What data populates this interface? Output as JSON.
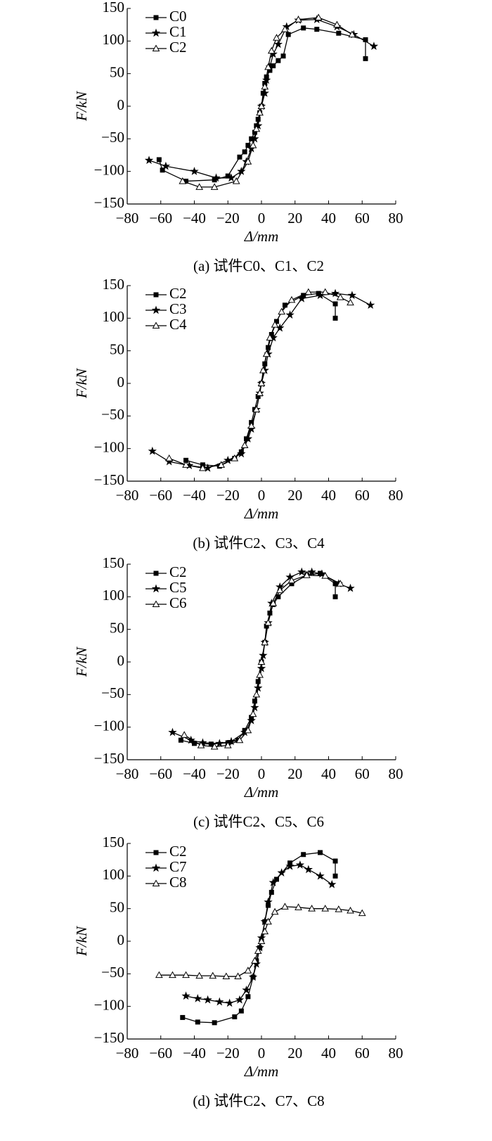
{
  "chart_data": [
    {
      "type": "line",
      "x_label": "Δ/mm",
      "y_label": "F/kN",
      "caption": "(a) 试件C0、C1、C2",
      "legend": "upper left",
      "xlim": [
        -80,
        80
      ],
      "ylim": [
        -150,
        150
      ],
      "xticks": [
        {
          "value": -80,
          "label": "−80"
        },
        {
          "value": -60,
          "label": "−60"
        },
        {
          "value": -40,
          "label": "−40"
        },
        {
          "value": -20,
          "label": "−20"
        },
        0,
        20,
        40,
        60,
        80
      ],
      "yticks": [
        {
          "value": -150,
          "label": "−150"
        },
        {
          "value": -100,
          "label": "−100"
        },
        {
          "value": -50,
          "label": "−50"
        },
        0,
        50,
        100,
        150
      ],
      "series": [
        {
          "name": "C0",
          "color": "#000000",
          "marker": "square",
          "x": [
            -61,
            -59,
            -45,
            -28,
            -20,
            -13,
            -10,
            -8,
            -6,
            -4,
            -3,
            -2,
            -1,
            0,
            1,
            2,
            3,
            5,
            7,
            10,
            13,
            16,
            25,
            33,
            46,
            62,
            62
          ],
          "values": [
            -82,
            -98,
            -115,
            -113,
            -107,
            -78,
            -70,
            -60,
            -50,
            -40,
            -30,
            -20,
            -10,
            0,
            20,
            35,
            45,
            55,
            62,
            70,
            77,
            110,
            120,
            118,
            112,
            102,
            73
          ]
        },
        {
          "name": "C1",
          "color": "#000000",
          "marker": "star",
          "x": [
            -67,
            -57,
            -40,
            -27,
            -18,
            -12,
            -9,
            -6,
            -4,
            -2,
            0,
            2,
            3,
            5,
            7,
            10,
            15,
            22,
            33,
            45,
            55,
            67
          ],
          "values": [
            -83,
            -92,
            -100,
            -110,
            -110,
            -100,
            -85,
            -65,
            -50,
            -30,
            0,
            20,
            40,
            60,
            80,
            95,
            122,
            132,
            133,
            122,
            110,
            92
          ]
        },
        {
          "name": "C2",
          "color": "#000000",
          "marker": "triangle",
          "x": [
            -47,
            -37,
            -28,
            -15,
            -8,
            -5,
            -3,
            -1,
            0,
            2,
            4,
            6,
            9,
            14,
            22,
            34,
            45,
            54
          ],
          "values": [
            -115,
            -124,
            -124,
            -115,
            -85,
            -60,
            -35,
            -10,
            0,
            30,
            60,
            85,
            105,
            118,
            133,
            136,
            125,
            110
          ]
        }
      ]
    },
    {
      "type": "line",
      "x_label": "Δ/mm",
      "y_label": "F/kN",
      "caption": "(b) 试件C2、C3、C4",
      "legend": "upper left",
      "xlim": [
        -80,
        80
      ],
      "ylim": [
        -150,
        150
      ],
      "xticks": [
        {
          "value": -80,
          "label": "−80"
        },
        {
          "value": -60,
          "label": "−60"
        },
        {
          "value": -40,
          "label": "−40"
        },
        {
          "value": -20,
          "label": "−20"
        },
        0,
        20,
        40,
        60,
        80
      ],
      "yticks": [
        {
          "value": -150,
          "label": "−150"
        },
        {
          "value": -100,
          "label": "−100"
        },
        {
          "value": -50,
          "label": "−50"
        },
        0,
        50,
        100,
        150
      ],
      "series": [
        {
          "name": "C2",
          "color": "#000000",
          "marker": "square",
          "x": [
            -45,
            -35,
            -25,
            -16,
            -12,
            -9,
            -6,
            -4,
            -2,
            0,
            2,
            4,
            6,
            9,
            14,
            25,
            34,
            44,
            44
          ],
          "values": [
            -118,
            -125,
            -127,
            -115,
            -105,
            -85,
            -60,
            -40,
            -20,
            0,
            30,
            55,
            75,
            95,
            120,
            135,
            138,
            122,
            100
          ]
        },
        {
          "name": "C3",
          "color": "#000000",
          "marker": "star",
          "x": [
            -65,
            -55,
            -43,
            -32,
            -20,
            -12,
            -8,
            -6,
            -3,
            -1,
            0,
            2,
            4,
            7,
            11,
            17,
            24,
            35,
            44,
            54,
            65
          ],
          "values": [
            -104,
            -120,
            -126,
            -130,
            -118,
            -108,
            -85,
            -70,
            -40,
            -15,
            0,
            20,
            45,
            70,
            85,
            105,
            130,
            135,
            138,
            135,
            120
          ]
        },
        {
          "name": "C4",
          "color": "#000000",
          "marker": "triangle",
          "x": [
            -55,
            -45,
            -35,
            -24,
            -16,
            -10,
            -6,
            -3,
            -1,
            0,
            1,
            3,
            5,
            8,
            12,
            18,
            28,
            38,
            47,
            53
          ],
          "values": [
            -115,
            -125,
            -130,
            -125,
            -115,
            -95,
            -65,
            -40,
            -15,
            0,
            20,
            45,
            70,
            90,
            110,
            128,
            140,
            140,
            132,
            124
          ]
        }
      ]
    },
    {
      "type": "line",
      "x_label": "Δ/mm",
      "y_label": "F/kN",
      "caption": "(c) 试件C2、C5、C6",
      "legend": "upper left",
      "xlim": [
        -80,
        80
      ],
      "ylim": [
        -150,
        150
      ],
      "xticks": [
        {
          "value": -80,
          "label": "−80"
        },
        {
          "value": -60,
          "label": "−60"
        },
        {
          "value": -40,
          "label": "−40"
        },
        {
          "value": -20,
          "label": "−20"
        },
        0,
        20,
        40,
        60,
        80
      ],
      "yticks": [
        {
          "value": -150,
          "label": "−150"
        },
        {
          "value": -100,
          "label": "−100"
        },
        {
          "value": -50,
          "label": "−50"
        },
        0,
        50,
        100,
        150
      ],
      "series": [
        {
          "name": "C2",
          "color": "#000000",
          "marker": "square",
          "x": [
            -48,
            -40,
            -30,
            -20,
            -14,
            -10,
            -6,
            -4,
            -2,
            0,
            2,
            3,
            5,
            7,
            10,
            18,
            27,
            35,
            44,
            44
          ],
          "values": [
            -120,
            -125,
            -126,
            -124,
            -120,
            -105,
            -85,
            -60,
            -30,
            0,
            30,
            55,
            75,
            88,
            100,
            120,
            133,
            136,
            120,
            100
          ]
        },
        {
          "name": "C5",
          "color": "#000000",
          "marker": "star",
          "x": [
            -53,
            -42,
            -35,
            -25,
            -18,
            -10,
            -6,
            -4,
            -2,
            0,
            1,
            2,
            4,
            6,
            11,
            17,
            24,
            30,
            36,
            46,
            53
          ],
          "values": [
            -108,
            -120,
            -124,
            -125,
            -122,
            -108,
            -90,
            -70,
            -40,
            -10,
            10,
            30,
            60,
            90,
            115,
            130,
            138,
            138,
            135,
            120,
            113
          ]
        },
        {
          "name": "C6",
          "color": "#000000",
          "marker": "triangle",
          "x": [
            -46,
            -36,
            -28,
            -20,
            -13,
            -8,
            -5,
            -3,
            -1,
            0,
            2,
            4,
            7,
            11,
            18,
            27,
            38,
            47
          ],
          "values": [
            -112,
            -128,
            -130,
            -128,
            -120,
            -105,
            -80,
            -50,
            -20,
            0,
            30,
            60,
            90,
            110,
            125,
            133,
            132,
            120
          ]
        }
      ]
    },
    {
      "type": "line",
      "x_label": "Δ/mm",
      "y_label": "F/kN",
      "caption": "(d) 试件C2、C7、C8",
      "legend": "upper left",
      "xlim": [
        -80,
        80
      ],
      "ylim": [
        -150,
        150
      ],
      "xticks": [
        {
          "value": -80,
          "label": "−80"
        },
        {
          "value": -60,
          "label": "−60"
        },
        {
          "value": -40,
          "label": "−40"
        },
        {
          "value": -20,
          "label": "−20"
        },
        0,
        20,
        40,
        60,
        80
      ],
      "yticks": [
        {
          "value": -150,
          "label": "−150"
        },
        {
          "value": -100,
          "label": "−100"
        },
        {
          "value": -50,
          "label": "−50"
        },
        0,
        50,
        100,
        150
      ],
      "series": [
        {
          "name": "C2",
          "color": "#000000",
          "marker": "square",
          "x": [
            -47,
            -38,
            -28,
            -16,
            -12,
            -8,
            -5,
            -3,
            -1,
            0,
            2,
            4,
            6,
            9,
            17,
            25,
            35,
            44,
            44
          ],
          "values": [
            -117,
            -124,
            -125,
            -116,
            -107,
            -85,
            -55,
            -30,
            -10,
            0,
            30,
            55,
            75,
            95,
            120,
            133,
            136,
            123,
            100
          ]
        },
        {
          "name": "C7",
          "color": "#000000",
          "marker": "star",
          "x": [
            -45,
            -38,
            -32,
            -25,
            -19,
            -13,
            -9,
            -5,
            -3,
            -1,
            0,
            2,
            4,
            7,
            12,
            17,
            23,
            28,
            35,
            42
          ],
          "values": [
            -84,
            -88,
            -90,
            -93,
            -95,
            -90,
            -75,
            -55,
            -35,
            -10,
            5,
            30,
            60,
            90,
            105,
            115,
            117,
            110,
            100,
            87
          ]
        },
        {
          "name": "C8",
          "color": "#000000",
          "marker": "triangle",
          "x": [
            -61,
            -53,
            -45,
            -37,
            -29,
            -21,
            -14,
            -8,
            -4,
            -2,
            0,
            2,
            4,
            8,
            14,
            22,
            30,
            38,
            46,
            53,
            60
          ],
          "values": [
            -52,
            -52,
            -52,
            -53,
            -53,
            -54,
            -54,
            -45,
            -30,
            -15,
            0,
            15,
            30,
            45,
            53,
            52,
            50,
            50,
            49,
            47,
            43
          ]
        }
      ]
    }
  ]
}
